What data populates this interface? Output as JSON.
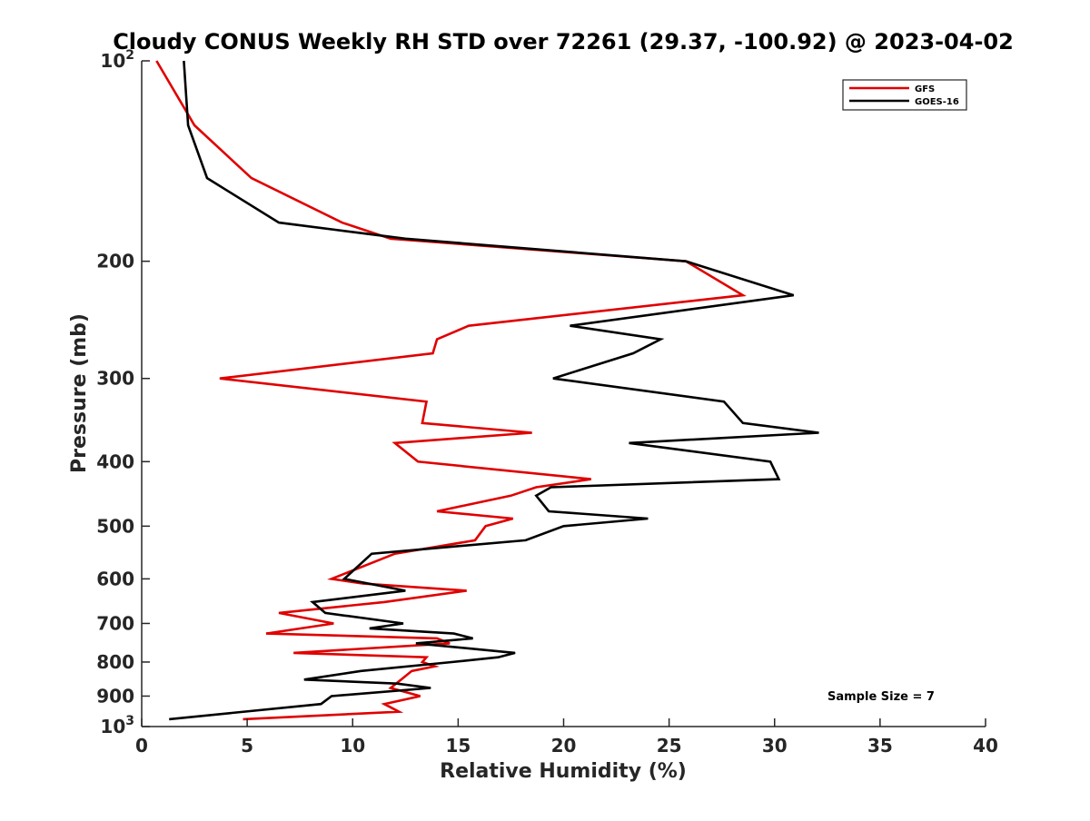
{
  "chart_data": {
    "type": "line",
    "title": "Cloudy CONUS Weekly RH STD over 72261 (29.37, -100.92) @ 2023-04-02",
    "xlabel": "Relative Humidity (%)",
    "ylabel": "Pressure (mb)",
    "xlim": [
      0,
      40
    ],
    "ylim": [
      100,
      1000
    ],
    "yscale": "log",
    "y_reversed": true,
    "grid": false,
    "legend_position": "top-right",
    "x_ticks": [
      0,
      5,
      10,
      15,
      20,
      25,
      30,
      35,
      40
    ],
    "x_tick_labels": [
      "0",
      "5",
      "10",
      "15",
      "20",
      "25",
      "30",
      "35",
      "40"
    ],
    "y_ticks": [
      100,
      200,
      300,
      400,
      500,
      600,
      700,
      800,
      900,
      1000
    ],
    "y_tick_labels": [
      {
        "base": "10",
        "exp": "2"
      },
      {
        "base": "200",
        "exp": ""
      },
      {
        "base": "300",
        "exp": ""
      },
      {
        "base": "400",
        "exp": ""
      },
      {
        "base": "500",
        "exp": ""
      },
      {
        "base": "600",
        "exp": ""
      },
      {
        "base": "700",
        "exp": ""
      },
      {
        "base": "800",
        "exp": ""
      },
      {
        "base": "900",
        "exp": ""
      },
      {
        "base": "10",
        "exp": "3"
      }
    ],
    "annotation": "Sample Size = 7",
    "series": [
      {
        "name": "GFS",
        "color": "#e00000",
        "points": [
          [
            0.7,
            100
          ],
          [
            2.5,
            125
          ],
          [
            5.2,
            150
          ],
          [
            9.5,
            175
          ],
          [
            11.8,
            185
          ],
          [
            25.8,
            200
          ],
          [
            28.5,
            225
          ],
          [
            15.5,
            250
          ],
          [
            14.0,
            262
          ],
          [
            13.8,
            275
          ],
          [
            3.7,
            300
          ],
          [
            13.5,
            325
          ],
          [
            13.3,
            350
          ],
          [
            18.5,
            362
          ],
          [
            12.0,
            375
          ],
          [
            13.1,
            400
          ],
          [
            21.3,
            425
          ],
          [
            18.7,
            437
          ],
          [
            17.5,
            450
          ],
          [
            14.0,
            475
          ],
          [
            17.6,
            487
          ],
          [
            16.3,
            500
          ],
          [
            15.8,
            525
          ],
          [
            12.0,
            550
          ],
          [
            9.0,
            600
          ],
          [
            10.5,
            610
          ],
          [
            15.4,
            625
          ],
          [
            11.5,
            650
          ],
          [
            6.5,
            675
          ],
          [
            9.1,
            700
          ],
          [
            5.9,
            725
          ],
          [
            14.0,
            737
          ],
          [
            14.6,
            750
          ],
          [
            7.2,
            775
          ],
          [
            13.5,
            787
          ],
          [
            13.3,
            800
          ],
          [
            13.9,
            812
          ],
          [
            12.8,
            825
          ],
          [
            12.3,
            850
          ],
          [
            11.8,
            875
          ],
          [
            13.2,
            900
          ],
          [
            11.5,
            925
          ],
          [
            12.2,
            950
          ],
          [
            4.8,
            975
          ]
        ]
      },
      {
        "name": "GOES-16",
        "color": "#000000",
        "points": [
          [
            2.0,
            100
          ],
          [
            2.2,
            125
          ],
          [
            3.1,
            150
          ],
          [
            6.5,
            175
          ],
          [
            12.5,
            185
          ],
          [
            25.8,
            200
          ],
          [
            30.9,
            225
          ],
          [
            20.3,
            250
          ],
          [
            24.6,
            262
          ],
          [
            23.3,
            275
          ],
          [
            19.5,
            300
          ],
          [
            27.6,
            325
          ],
          [
            28.5,
            350
          ],
          [
            32.1,
            362
          ],
          [
            23.1,
            375
          ],
          [
            29.8,
            400
          ],
          [
            30.2,
            425
          ],
          [
            19.4,
            437
          ],
          [
            18.7,
            450
          ],
          [
            19.3,
            475
          ],
          [
            24.0,
            487
          ],
          [
            20.0,
            500
          ],
          [
            18.2,
            525
          ],
          [
            10.9,
            550
          ],
          [
            9.6,
            600
          ],
          [
            12.5,
            625
          ],
          [
            8.1,
            650
          ],
          [
            8.7,
            675
          ],
          [
            12.4,
            700
          ],
          [
            10.8,
            712
          ],
          [
            14.8,
            725
          ],
          [
            15.7,
            737
          ],
          [
            13.0,
            750
          ],
          [
            17.7,
            775
          ],
          [
            16.9,
            787
          ],
          [
            14.7,
            800
          ],
          [
            10.4,
            825
          ],
          [
            7.7,
            850
          ],
          [
            12.1,
            862
          ],
          [
            13.7,
            875
          ],
          [
            9.0,
            900
          ],
          [
            8.5,
            925
          ],
          [
            1.3,
            975
          ]
        ]
      }
    ]
  }
}
